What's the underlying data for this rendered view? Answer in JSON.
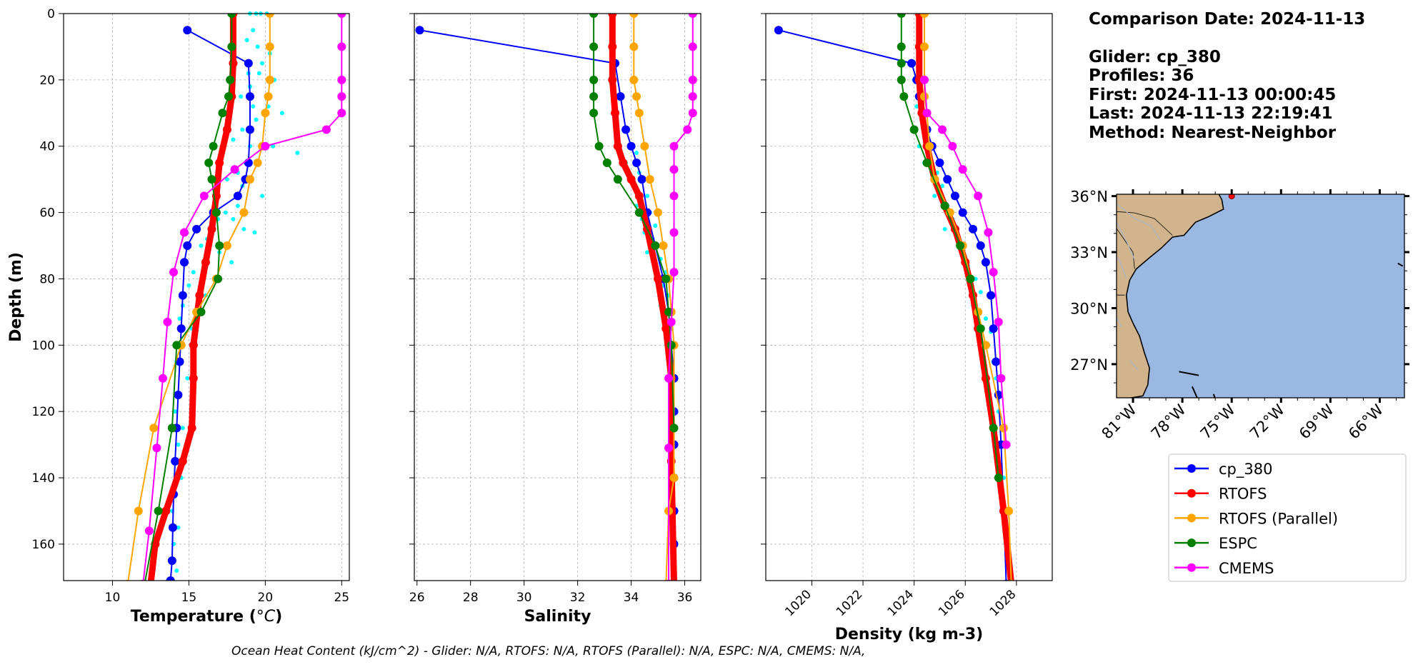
{
  "info": {
    "comparison_date": "Comparison Date: 2024-11-13",
    "glider": "Glider: cp_380",
    "profiles": "Profiles: 36",
    "first": "First: 2024-11-13 00:00:45",
    "last": "Last: 2024-11-13 22:19:41",
    "method": "Method: Nearest-Neighbor"
  },
  "footer": "Ocean Heat Content (kJ/cm^2) - Glider: N/A,  RTOFS: N/A,  RTOFS (Parallel): N/A,  ESPC: N/A,  CMEMS: N/A,",
  "legend": [
    {
      "name": "cp_380",
      "color": "#0000ff"
    },
    {
      "name": "RTOFS",
      "color": "#ff0000"
    },
    {
      "name": "RTOFS (Parallel)",
      "color": "#ffa500"
    },
    {
      "name": "ESPC",
      "color": "#008000"
    },
    {
      "name": "CMEMS",
      "color": "#ff00ff"
    }
  ],
  "map": {
    "lat_labels": [
      "36°N",
      "33°N",
      "30°N",
      "27°N"
    ],
    "lon_labels": [
      "81°W",
      "78°W",
      "75°W",
      "72°W",
      "69°W",
      "66°W"
    ],
    "lat_values": [
      36,
      33,
      30,
      27
    ],
    "lon_values": [
      -81,
      -78,
      -75,
      -72,
      -69,
      -66
    ],
    "extent": {
      "lon": [
        -82,
        -64.5
      ],
      "lat": [
        25.2,
        36.1
      ]
    },
    "ocean_color": "#9bb8e3",
    "land_color": "#d2b48c",
    "glider_position": {
      "lon": -75.0,
      "lat": 36.0
    }
  },
  "chart_data": [
    {
      "type": "line",
      "xlabel": "Temperature (°C)",
      "ylabel": "Depth (m)",
      "xlim": [
        6.8,
        25.5
      ],
      "ylim": [
        171,
        0
      ],
      "xticks": [
        10,
        15,
        20,
        25
      ],
      "yticks": [
        0,
        20,
        40,
        60,
        80,
        100,
        120,
        140,
        160
      ],
      "grid": true,
      "scatter": {
        "name": "cp_380 profiles",
        "color": "#00ffff",
        "x": [
          19.0,
          19.4,
          19.7,
          20.1,
          19.2,
          18.8,
          19.5,
          20.3,
          19.8,
          18.9,
          19.6,
          20.6,
          19.0,
          18.4,
          19.2,
          20.2,
          21.1,
          19.4,
          18.5,
          17.9,
          19.0,
          20.5,
          22.1,
          18.7,
          18.2,
          17.5,
          16.8,
          18.5,
          19.8,
          18.2,
          17.4,
          16.9,
          17.9,
          18.6,
          19.3,
          16.2,
          15.8,
          17.0,
          17.8,
          15.3,
          15.0,
          16.1,
          14.6,
          14.4,
          15.2,
          14.5,
          14.2,
          14.9,
          14.4,
          14.1,
          14.6,
          14.3,
          14.0,
          14.5,
          14.1,
          13.9,
          14.3,
          14.0,
          13.8,
          14.2
        ],
        "y": [
          0,
          0,
          0,
          0,
          5,
          8,
          10,
          12,
          15,
          18,
          18,
          20,
          22,
          25,
          28,
          28,
          30,
          32,
          35,
          38,
          40,
          40,
          42,
          45,
          48,
          50,
          52,
          52,
          55,
          58,
          60,
          62,
          62,
          65,
          66,
          68,
          70,
          72,
          75,
          78,
          82,
          85,
          88,
          92,
          95,
          100,
          105,
          110,
          115,
          120,
          125,
          130,
          135,
          140,
          145,
          150,
          155,
          160,
          165,
          168
        ]
      },
      "series": [
        {
          "name": "cp_380",
          "color": "#0000ff",
          "width": 2,
          "x": [
            14.9,
            18.9,
            19.0,
            19.0,
            18.9,
            18.7,
            18.2,
            16.6,
            15.5,
            14.9,
            14.7,
            14.6,
            14.5,
            14.4,
            14.3,
            14.2,
            14.1,
            14.0,
            13.95,
            13.9,
            13.8,
            13.6
          ],
          "y": [
            5,
            15,
            25,
            35,
            45,
            50,
            55,
            60,
            65,
            70,
            75,
            85,
            95,
            105,
            115,
            125,
            135,
            145,
            155,
            165,
            171,
            172
          ]
        },
        {
          "name": "RTOFS",
          "color": "#ff0000",
          "width": 9,
          "x": [
            17.9,
            17.9,
            17.8,
            17.5,
            17.0,
            16.8,
            16.5,
            16.1,
            15.7,
            15.3,
            15.3,
            15.2,
            14.6,
            13.5,
            12.8,
            12.5
          ],
          "y": [
            0,
            15,
            25,
            35,
            45,
            55,
            65,
            75,
            85,
            100,
            110,
            125,
            135,
            150,
            160,
            172
          ]
        },
        {
          "name": "RTOFS (Parallel)",
          "color": "#ffa500",
          "width": 2,
          "x": [
            20.3,
            20.3,
            20.3,
            20.2,
            20.0,
            19.8,
            19.5,
            19.0,
            18.6,
            17.5,
            16.8,
            15.5,
            14.5,
            12.7,
            11.7,
            11.0
          ],
          "y": [
            0,
            10,
            20,
            25,
            30,
            40,
            45,
            50,
            60,
            70,
            80,
            90,
            100,
            125,
            150,
            172
          ]
        },
        {
          "name": "ESPC",
          "color": "#008000",
          "width": 2,
          "x": [
            17.8,
            17.8,
            17.7,
            17.6,
            17.2,
            16.6,
            16.3,
            16.5,
            16.8,
            17.0,
            16.9,
            15.8,
            14.2,
            13.9,
            13.0,
            12.1
          ],
          "y": [
            0,
            10,
            20,
            25,
            30,
            40,
            45,
            50,
            60,
            70,
            80,
            90,
            100,
            125,
            150,
            172
          ]
        },
        {
          "name": "CMEMS",
          "color": "#ff00ff",
          "width": 2,
          "x": [
            25.0,
            25.0,
            25.0,
            25.0,
            25.0,
            24.0,
            20.0,
            18.0,
            16.0,
            14.7,
            14.0,
            13.6,
            13.3,
            12.9,
            12.4,
            12.0
          ],
          "y": [
            0,
            10,
            20,
            25,
            30,
            35,
            40,
            47,
            55,
            66,
            78,
            93,
            110,
            131,
            156,
            172
          ]
        }
      ]
    },
    {
      "type": "line",
      "xlabel": "Salinity",
      "ylabel": "",
      "xlim": [
        25.9,
        36.6
      ],
      "ylim": [
        171,
        0
      ],
      "xticks": [
        26,
        28,
        30,
        32,
        34,
        36
      ],
      "grid": true,
      "scatter": {
        "name": "cp_380 profiles",
        "color": "#00ffff",
        "x": [
          34.0,
          34.2,
          33.8,
          34.3,
          34.5,
          34.1,
          34.6,
          34.2,
          34.7,
          34.4,
          34.9,
          34.5,
          34.8,
          35.0,
          34.6,
          35.1,
          34.9,
          35.3,
          35.0,
          35.2,
          35.4,
          35.1,
          35.3,
          35.5,
          35.4,
          35.5,
          35.5,
          35.6,
          35.5,
          35.6
        ],
        "y": [
          40,
          42,
          45,
          48,
          50,
          52,
          55,
          58,
          60,
          62,
          64,
          66,
          68,
          70,
          72,
          74,
          76,
          78,
          80,
          82,
          85,
          88,
          90,
          95,
          100,
          110,
          120,
          130,
          140,
          150
        ]
      },
      "series": [
        {
          "name": "cp_380",
          "color": "#0000ff",
          "width": 2,
          "x": [
            26.1,
            33.4,
            33.6,
            33.8,
            34.0,
            34.2,
            34.4,
            34.6,
            34.9,
            35.2,
            35.4,
            35.5,
            35.6,
            35.6,
            35.6,
            35.6,
            35.6,
            35.6,
            35.6
          ],
          "y": [
            5,
            15,
            25,
            35,
            40,
            45,
            50,
            60,
            70,
            80,
            90,
            100,
            110,
            120,
            130,
            140,
            150,
            160,
            172
          ]
        },
        {
          "name": "RTOFS",
          "color": "#ff0000",
          "width": 9,
          "x": [
            33.3,
            33.3,
            33.3,
            33.4,
            33.5,
            33.7,
            34.0,
            34.3,
            34.6,
            35.0,
            35.3,
            35.5,
            35.5,
            35.6
          ],
          "y": [
            0,
            10,
            20,
            30,
            40,
            45,
            50,
            55,
            65,
            80,
            95,
            110,
            135,
            172
          ]
        },
        {
          "name": "RTOFS (Parallel)",
          "color": "#ffa500",
          "width": 2,
          "x": [
            34.1,
            34.1,
            34.1,
            34.2,
            34.3,
            34.5,
            34.7,
            35.0,
            35.2,
            35.4,
            35.5,
            35.6,
            35.6,
            35.6,
            35.4,
            35.3
          ],
          "y": [
            0,
            10,
            20,
            25,
            30,
            40,
            50,
            60,
            70,
            80,
            90,
            100,
            125,
            140,
            150,
            172
          ]
        },
        {
          "name": "ESPC",
          "color": "#008000",
          "width": 2,
          "x": [
            32.6,
            32.6,
            32.6,
            32.6,
            32.6,
            32.8,
            33.1,
            33.5,
            34.3,
            34.9,
            35.3,
            35.4,
            35.5,
            35.6
          ],
          "y": [
            0,
            10,
            20,
            25,
            30,
            40,
            45,
            50,
            60,
            70,
            80,
            90,
            100,
            125
          ]
        },
        {
          "name": "CMEMS",
          "color": "#ff00ff",
          "width": 2,
          "x": [
            36.3,
            36.3,
            36.3,
            36.3,
            36.3,
            36.1,
            35.6,
            35.6,
            35.6,
            35.6,
            35.6,
            35.5,
            35.4,
            35.4,
            35.4
          ],
          "y": [
            0,
            10,
            20,
            25,
            30,
            35,
            40,
            47,
            55,
            66,
            78,
            93,
            110,
            131,
            172
          ]
        }
      ]
    },
    {
      "type": "line",
      "xlabel": "Density (kg m-3)",
      "ylabel": "",
      "xlim": [
        1018.2,
        1029.4
      ],
      "ylim": [
        171,
        0
      ],
      "xticks": [
        1020,
        1022,
        1024,
        1026,
        1028
      ],
      "grid": true,
      "scatter": {
        "name": "cp_380 profiles",
        "color": "#00ffff",
        "x": [
          1024.0,
          1024.2,
          1024.1,
          1024.3,
          1024.5,
          1024.2,
          1024.6,
          1024.4,
          1024.9,
          1025.1,
          1024.8,
          1025.3,
          1025.5,
          1025.2,
          1025.7,
          1025.9,
          1026.1,
          1026.4,
          1026.6,
          1026.3,
          1026.8,
          1027.0,
          1026.9,
          1027.1,
          1027.2,
          1027.3,
          1027.4,
          1027.5,
          1027.6,
          1027.6
        ],
        "y": [
          20,
          25,
          28,
          32,
          36,
          40,
          42,
          45,
          48,
          52,
          55,
          58,
          62,
          65,
          68,
          72,
          76,
          80,
          84,
          88,
          92,
          96,
          100,
          105,
          110,
          120,
          130,
          140,
          150,
          160
        ]
      },
      "series": [
        {
          "name": "cp_380",
          "color": "#0000ff",
          "width": 2,
          "x": [
            1018.7,
            1023.9,
            1024.1,
            1024.2,
            1024.3,
            1024.5,
            1024.7,
            1025.0,
            1025.3,
            1025.6,
            1025.9,
            1026.3,
            1026.6,
            1026.8,
            1027.0,
            1027.1,
            1027.2,
            1027.3,
            1027.4,
            1027.5,
            1027.6
          ],
          "y": [
            5,
            15,
            20,
            25,
            30,
            35,
            40,
            45,
            50,
            55,
            60,
            65,
            70,
            75,
            85,
            95,
            105,
            115,
            130,
            150,
            172
          ]
        },
        {
          "name": "RTOFS",
          "color": "#ff0000",
          "width": 9,
          "x": [
            1024.2,
            1024.2,
            1024.2,
            1024.3,
            1024.5,
            1024.8,
            1025.2,
            1025.6,
            1026.0,
            1026.3,
            1026.5,
            1026.8,
            1027.1,
            1027.5,
            1027.8
          ],
          "y": [
            0,
            10,
            20,
            30,
            40,
            50,
            58,
            65,
            75,
            85,
            95,
            110,
            125,
            150,
            172
          ]
        },
        {
          "name": "RTOFS (Parallel)",
          "color": "#ffa500",
          "width": 2,
          "x": [
            1024.4,
            1024.4,
            1024.4,
            1024.4,
            1024.5,
            1024.6,
            1024.8,
            1025.4,
            1025.9,
            1026.2,
            1026.5,
            1026.8,
            1027.5,
            1027.7,
            1027.8
          ],
          "y": [
            0,
            10,
            20,
            25,
            30,
            40,
            50,
            60,
            70,
            80,
            90,
            100,
            125,
            150,
            172
          ]
        },
        {
          "name": "ESPC",
          "color": "#008000",
          "width": 2,
          "x": [
            1023.5,
            1023.5,
            1023.5,
            1023.5,
            1023.6,
            1024.0,
            1024.5,
            1025.2,
            1025.8,
            1026.2,
            1026.6,
            1027.1,
            1027.3
          ],
          "y": [
            0,
            10,
            15,
            20,
            25,
            35,
            45,
            58,
            70,
            80,
            95,
            125,
            140
          ]
        },
        {
          "name": "CMEMS",
          "color": "#ff00ff",
          "width": 2,
          "x": [
            1024.4,
            1024.5,
            1025.1,
            1025.5,
            1025.9,
            1026.5,
            1026.9,
            1027.1,
            1027.3,
            1027.4,
            1027.6
          ],
          "y": [
            20,
            30,
            35,
            40,
            47,
            55,
            66,
            78,
            93,
            110,
            130
          ]
        }
      ]
    }
  ]
}
